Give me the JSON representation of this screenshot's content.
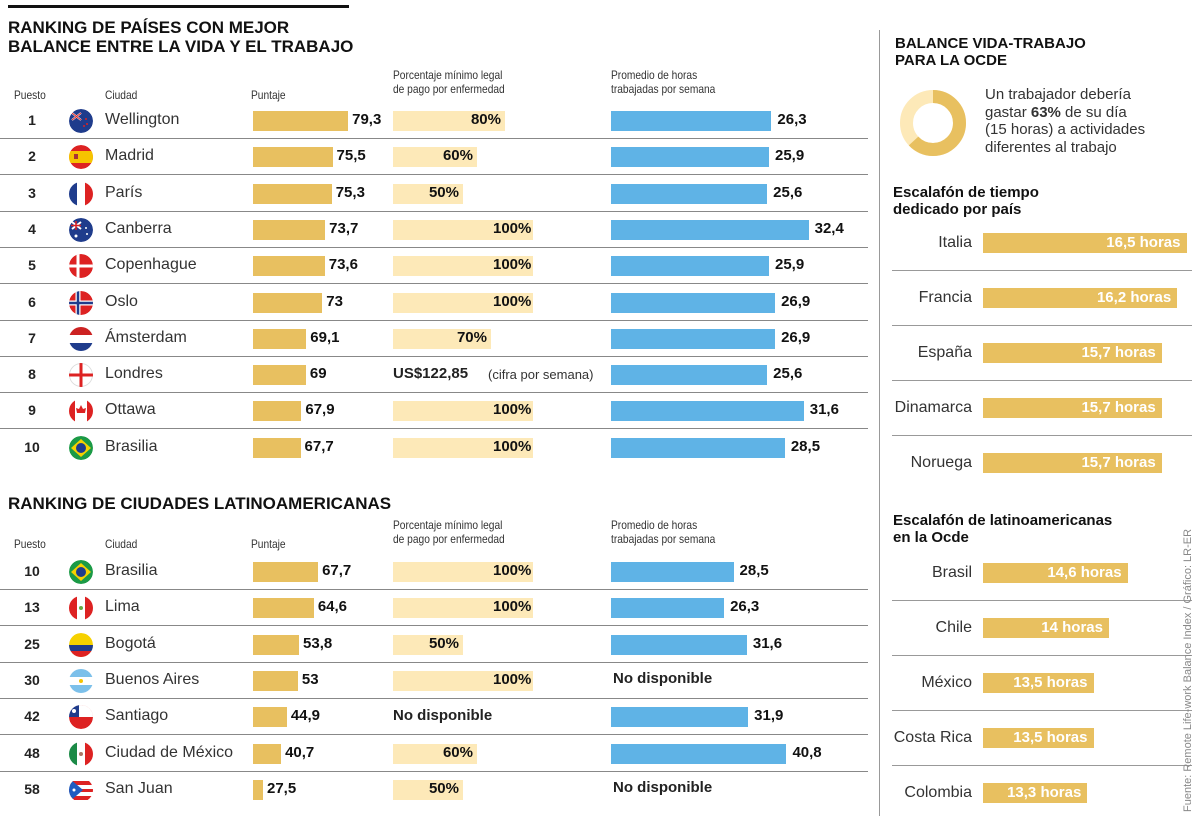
{
  "colors": {
    "score": "#e8c060",
    "sick_pay": "#fde9b8",
    "hours": "#5fb3e6",
    "hours_bar_right": "#e8c060"
  },
  "table1": {
    "title": "RANKING DE PAÍSES CON MEJOR\nBALANCE ENTRE LA VIDA Y EL TRABAJO",
    "headers": {
      "rank": "Puesto",
      "city": "Ciudad",
      "score": "Puntaje",
      "sick": "Porcentaje mínimo legal\nde pago por enfermedad",
      "hours": "Promedio de horas\ntrabajadas por semana"
    },
    "rows": [
      {
        "rank": "1",
        "flag": "new-zealand-flag",
        "city": "Wellington",
        "score": 79.3,
        "score_label": "79,3",
        "sick": 80,
        "sick_label": "80%",
        "hours": 26.3,
        "hours_label": "26,3"
      },
      {
        "rank": "2",
        "flag": "spain-flag",
        "city": "Madrid",
        "score": 75.5,
        "score_label": "75,5",
        "sick": 60,
        "sick_label": "60%",
        "hours": 25.9,
        "hours_label": "25,9"
      },
      {
        "rank": "3",
        "flag": "france-flag",
        "city": "París",
        "score": 75.3,
        "score_label": "75,3",
        "sick": 50,
        "sick_label": "50%",
        "hours": 25.6,
        "hours_label": "25,6"
      },
      {
        "rank": "4",
        "flag": "australia-flag",
        "city": "Canberra",
        "score": 73.7,
        "score_label": "73,7",
        "sick": 100,
        "sick_label": "100%",
        "hours": 32.4,
        "hours_label": "32,4"
      },
      {
        "rank": "5",
        "flag": "denmark-flag",
        "city": "Copenhague",
        "score": 73.6,
        "score_label": "73,6",
        "sick": 100,
        "sick_label": "100%",
        "hours": 25.9,
        "hours_label": "25,9"
      },
      {
        "rank": "6",
        "flag": "norway-flag",
        "city": "Oslo",
        "score": 73,
        "score_label": "73",
        "sick": 100,
        "sick_label": "100%",
        "hours": 26.9,
        "hours_label": "26,9"
      },
      {
        "rank": "7",
        "flag": "netherlands-flag",
        "city": "Ámsterdam",
        "score": 69.1,
        "score_label": "69,1",
        "sick": 70,
        "sick_label": "70%",
        "hours": 26.9,
        "hours_label": "26,9"
      },
      {
        "rank": "8",
        "flag": "england-flag",
        "city": "Londres",
        "score": 69,
        "score_label": "69",
        "sick": null,
        "sick_label": "US$122,85",
        "sick_note": "(cifra por semana)",
        "hours": 25.6,
        "hours_label": "25,6"
      },
      {
        "rank": "9",
        "flag": "canada-flag",
        "city": "Ottawa",
        "score": 67.9,
        "score_label": "67,9",
        "sick": 100,
        "sick_label": "100%",
        "hours": 31.6,
        "hours_label": "31,6"
      },
      {
        "rank": "10",
        "flag": "brazil-flag",
        "city": "Brasilia",
        "score": 67.7,
        "score_label": "67,7",
        "sick": 100,
        "sick_label": "100%",
        "hours": 28.5,
        "hours_label": "28,5"
      }
    ]
  },
  "table2": {
    "title": "RANKING DE CIUDADES LATINOAMERICANAS",
    "headers": {
      "rank": "Puesto",
      "city": "Ciudad",
      "score": "Puntaje",
      "sick": "Porcentaje mínimo legal\nde pago por enfermedad",
      "hours": "Promedio de horas\ntrabajadas por semana"
    },
    "rows": [
      {
        "rank": "10",
        "flag": "brazil-flag",
        "city": "Brasilia",
        "score": 67.7,
        "score_label": "67,7",
        "sick": 100,
        "sick_label": "100%",
        "hours": 28.5,
        "hours_label": "28,5"
      },
      {
        "rank": "13",
        "flag": "peru-flag",
        "city": "Lima",
        "score": 64.6,
        "score_label": "64,6",
        "sick": 100,
        "sick_label": "100%",
        "hours": 26.3,
        "hours_label": "26,3"
      },
      {
        "rank": "25",
        "flag": "colombia-flag",
        "city": "Bogotá",
        "score": 53.8,
        "score_label": "53,8",
        "sick": 50,
        "sick_label": "50%",
        "hours": 31.6,
        "hours_label": "31,6"
      },
      {
        "rank": "30",
        "flag": "argentina-flag",
        "city": "Buenos Aires",
        "score": 53,
        "score_label": "53",
        "sick": 100,
        "sick_label": "100%",
        "hours": null,
        "hours_label": "No disponible"
      },
      {
        "rank": "42",
        "flag": "chile-flag",
        "city": "Santiago",
        "score": 44.9,
        "score_label": "44,9",
        "sick": null,
        "sick_label": "No disponible",
        "hours": 31.9,
        "hours_label": "31,9"
      },
      {
        "rank": "48",
        "flag": "mexico-flag",
        "city": "Ciudad de México",
        "score": 40.7,
        "score_label": "40,7",
        "sick": 60,
        "sick_label": "60%",
        "hours": 40.8,
        "hours_label": "40,8"
      },
      {
        "rank": "58",
        "flag": "puerto-rico-flag",
        "city": "San Juan",
        "score": 27.5,
        "score_label": "27,5",
        "sick": 50,
        "sick_label": "50%",
        "hours": null,
        "hours_label": "No disponible"
      }
    ]
  },
  "side": {
    "title": "BALANCE VIDA-TRABAJO\nPARA LA OCDE",
    "donut": {
      "value": 63,
      "text_pre": "Un trabajador debería\ngastar ",
      "text_bold": "63%",
      "text_post": " de su día\n(15 horas) a actividades\ndiferentes al trabajo"
    },
    "chart1": {
      "title": "Escalafón de tiempo\ndedicado por país",
      "items": [
        {
          "label": "Italia",
          "value": 16.5,
          "value_label": "16,5 horas"
        },
        {
          "label": "Francia",
          "value": 16.2,
          "value_label": "16,2 horas"
        },
        {
          "label": "España",
          "value": 15.7,
          "value_label": "15,7 horas"
        },
        {
          "label": "Dinamarca",
          "value": 15.7,
          "value_label": "15,7 horas"
        },
        {
          "label": "Noruega",
          "value": 15.7,
          "value_label": "15,7 horas"
        }
      ]
    },
    "chart2": {
      "title": "Escalafón de latinoamericanas\nen la Ocde",
      "items": [
        {
          "label": "Brasil",
          "value": 14.6,
          "value_label": "14,6 horas"
        },
        {
          "label": "Chile",
          "value": 14,
          "value_label": "14 horas"
        },
        {
          "label": "México",
          "value": 13.5,
          "value_label": "13,5 horas"
        },
        {
          "label": "Costa Rica",
          "value": 13.5,
          "value_label": "13,5 horas"
        },
        {
          "label": "Colombia",
          "value": 13.3,
          "value_label": "13,3 horas"
        }
      ]
    }
  },
  "source": "Fuente: Remote Life-work Balance Index / Gráfico: LR-ER"
}
